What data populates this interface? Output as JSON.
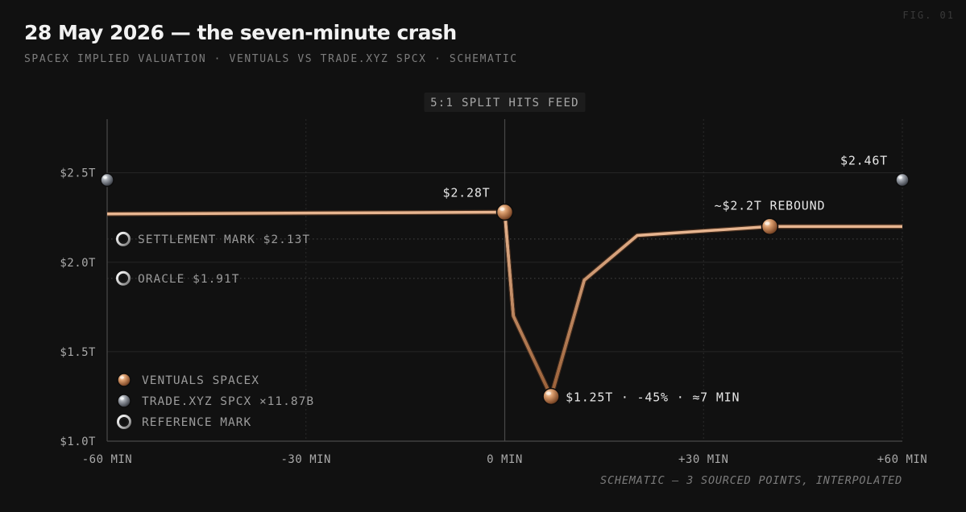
{
  "figure_tag": "FIG. 01",
  "title": "28 May 2026 — the seven-minute crash",
  "subtitle": "SPACEX IMPLIED VALUATION · VENTUALS VS TRADE.XYZ SPCX · SCHEMATIC",
  "footnote": "SCHEMATIC — 3 SOURCED POINTS, INTERPOLATED",
  "colors": {
    "background": "#111111",
    "ventuals": "#e7b590",
    "ventuals_marker": "#c98f64",
    "trade_marker": "#8d929b",
    "reference_ring": "#e8e8e8"
  },
  "chart_data": {
    "type": "line",
    "xlabel": "",
    "ylabel": "",
    "xlim": [
      -60,
      60
    ],
    "ylim": [
      1.0,
      2.8
    ],
    "x_ticks": [
      {
        "value": -60,
        "label": "-60 MIN"
      },
      {
        "value": -30,
        "label": "-30 MIN"
      },
      {
        "value": 0,
        "label": "0 MIN"
      },
      {
        "value": 30,
        "label": "+30 MIN"
      },
      {
        "value": 60,
        "label": "+60 MIN"
      }
    ],
    "y_ticks": [
      {
        "value": 1.0,
        "label": "$1.0T"
      },
      {
        "value": 1.5,
        "label": "$1.5T"
      },
      {
        "value": 2.0,
        "label": "$2.0T"
      },
      {
        "value": 2.5,
        "label": "$2.5T"
      }
    ],
    "grid": true,
    "series": [
      {
        "name": "VENTUALS SPACEX",
        "color": "#e7b590",
        "points": [
          [
            -60,
            2.27
          ],
          [
            0,
            2.28
          ],
          [
            1.3,
            1.7
          ],
          [
            7,
            1.25
          ],
          [
            12,
            1.9
          ],
          [
            20,
            2.15
          ],
          [
            40,
            2.2
          ],
          [
            60,
            2.2
          ]
        ]
      }
    ],
    "markers": [
      {
        "series": "VENTUALS SPACEX",
        "x": 0,
        "y": 2.28,
        "label": "$2.28T",
        "kind": "ventuals"
      },
      {
        "series": "VENTUALS SPACEX",
        "x": 7,
        "y": 1.25,
        "label": "$1.25T · -45% · ≈7 MIN",
        "kind": "ventuals"
      },
      {
        "series": "VENTUALS SPACEX",
        "x": 40,
        "y": 2.2,
        "label": "~$2.2T REBOUND",
        "kind": "ventuals"
      },
      {
        "series": "TRADE.XYZ SPCX ×11.87B",
        "x": -60,
        "y": 2.46,
        "label": "",
        "kind": "trade"
      },
      {
        "series": "TRADE.XYZ SPCX ×11.87B",
        "x": 60,
        "y": 2.46,
        "label": "$2.46T",
        "kind": "trade"
      }
    ],
    "reference_lines": [
      {
        "y": 2.13,
        "label": "SETTLEMENT MARK $2.13T"
      },
      {
        "y": 1.91,
        "label": "ORACLE $1.91T"
      }
    ],
    "event": {
      "x": 0,
      "label": "5:1 SPLIT HITS FEED"
    },
    "legend": {
      "placement": "bottom-left",
      "entries": [
        {
          "label": "VENTUALS SPACEX",
          "kind": "ventuals"
        },
        {
          "label": "TRADE.XYZ SPCX ×11.87B",
          "kind": "trade"
        },
        {
          "label": "REFERENCE MARK",
          "kind": "reference"
        }
      ]
    }
  }
}
